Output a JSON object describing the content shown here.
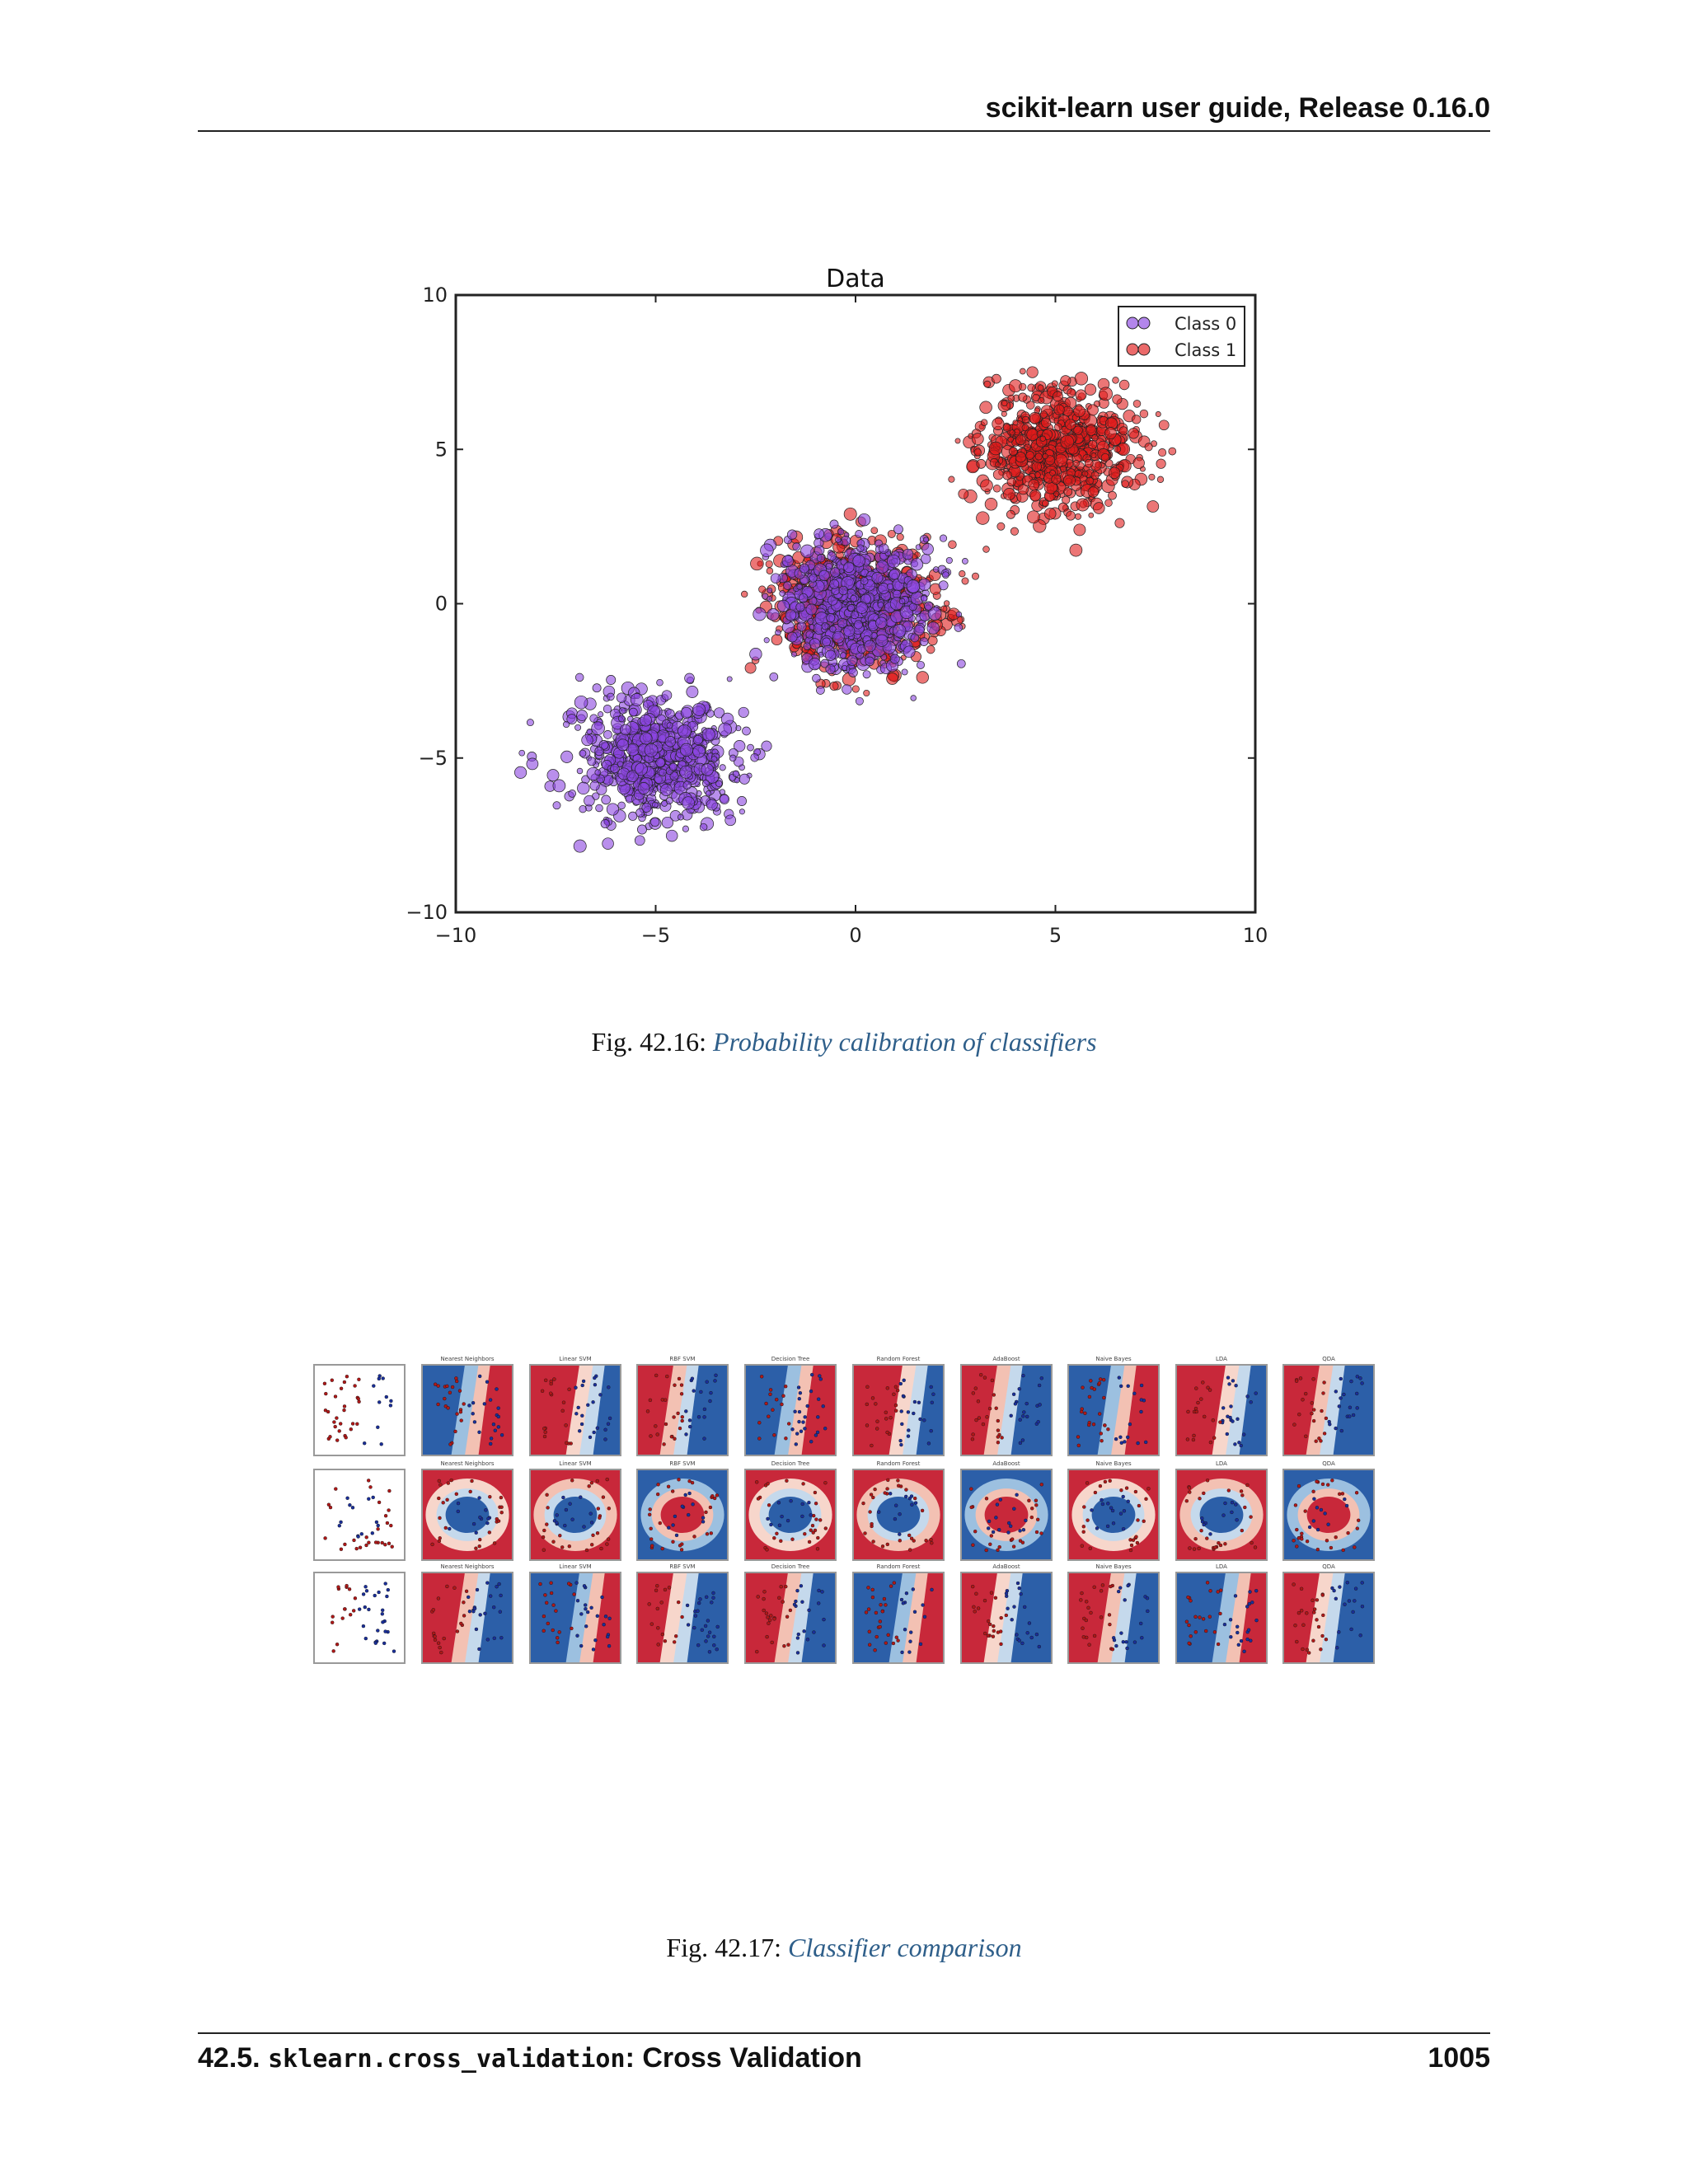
{
  "header": {
    "title": "scikit-learn user guide, Release 0.16.0"
  },
  "figure1": {
    "caption_prefix": "Fig.  42.16: ",
    "caption_link": "Probability calibration of classifiers"
  },
  "figure2": {
    "caption_prefix": "Fig.  42.17: ",
    "caption_link": "Classifier comparison",
    "column_titles": [
      "",
      "Nearest Neighbors",
      "Linear SVM",
      "RBF SVM",
      "Decision Tree",
      "Random Forest",
      "AdaBoost",
      "Naive Bayes",
      "LDA",
      "QDA"
    ],
    "colors": {
      "red": "#c8283a",
      "blue": "#2c5fa8",
      "light_red": "#f3c1b3",
      "light_blue": "#c5d9ec"
    }
  },
  "footer": {
    "section_number": "42.5. ",
    "section_module": "sklearn.cross_validation",
    "section_title": ": Cross Validation",
    "page_number": "1005"
  },
  "chart_data": {
    "type": "scatter",
    "title": "Data",
    "xlim": [
      -10,
      10
    ],
    "ylim": [
      -10,
      10
    ],
    "xticks": [
      "−10",
      "−5",
      "0",
      "5",
      "10"
    ],
    "yticks": [
      "−10",
      "−5",
      "0",
      "5",
      "10"
    ],
    "legend_position": "top-right",
    "grid": false,
    "series": [
      {
        "name": "Class 0",
        "color": "#8a45e0",
        "clusters": [
          {
            "center": [
              -5,
              -5
            ],
            "std": 1.0
          },
          {
            "center": [
              0,
              0
            ],
            "std": 1.0
          }
        ]
      },
      {
        "name": "Class 1",
        "color": "#e01a1a",
        "clusters": [
          {
            "center": [
              0,
              0
            ],
            "std": 1.0
          },
          {
            "center": [
              5,
              5
            ],
            "std": 1.0
          }
        ]
      }
    ]
  }
}
